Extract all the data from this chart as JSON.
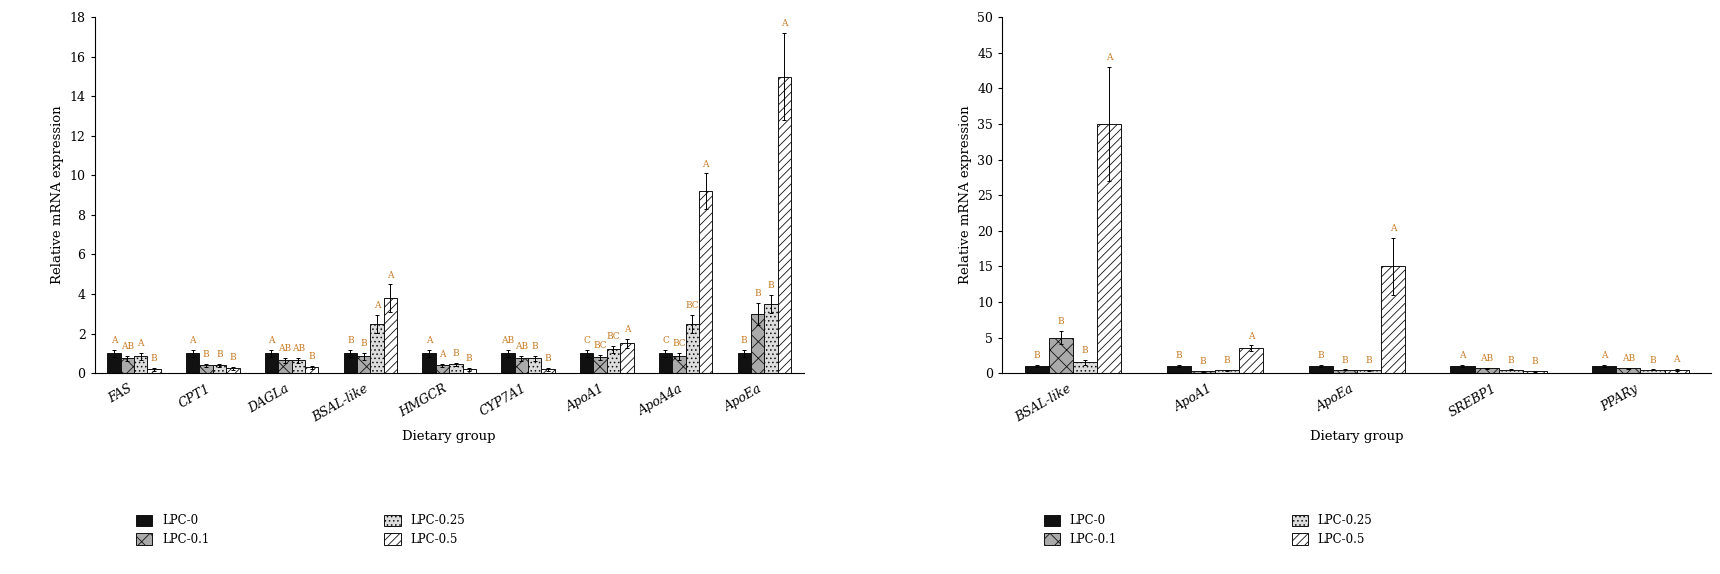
{
  "left": {
    "ylabel": "Relative mRNA expression",
    "xlabel": "Dietary group",
    "ylim": [
      0,
      18
    ],
    "yticks": [
      0,
      2,
      4,
      6,
      8,
      10,
      12,
      14,
      16,
      18
    ],
    "categories": [
      "FAS",
      "CPT1",
      "DAGLa",
      "BSAL-like",
      "HMGCR",
      "CYP7A1",
      "ApoA1",
      "ApoA4a",
      "ApoEa"
    ],
    "values": [
      [
        1.0,
        0.75,
        0.85,
        0.2
      ],
      [
        1.0,
        0.4,
        0.4,
        0.25
      ],
      [
        1.0,
        0.65,
        0.65,
        0.3
      ],
      [
        1.0,
        0.85,
        2.5,
        3.8
      ],
      [
        1.0,
        0.4,
        0.45,
        0.2
      ],
      [
        1.0,
        0.75,
        0.75,
        0.2
      ],
      [
        1.0,
        0.8,
        1.2,
        1.5
      ],
      [
        1.0,
        0.85,
        2.5,
        9.2
      ],
      [
        1.0,
        3.0,
        3.5,
        15.0
      ]
    ],
    "errors": [
      [
        0.18,
        0.12,
        0.18,
        0.08
      ],
      [
        0.18,
        0.08,
        0.08,
        0.08
      ],
      [
        0.18,
        0.12,
        0.12,
        0.08
      ],
      [
        0.18,
        0.18,
        0.45,
        0.7
      ],
      [
        0.18,
        0.08,
        0.08,
        0.08
      ],
      [
        0.18,
        0.12,
        0.12,
        0.08
      ],
      [
        0.18,
        0.12,
        0.18,
        0.25
      ],
      [
        0.18,
        0.18,
        0.45,
        0.9
      ],
      [
        0.18,
        0.55,
        0.45,
        2.2
      ]
    ],
    "letters": [
      [
        "A",
        "AB",
        "A",
        "B"
      ],
      [
        "A",
        "B",
        "B",
        "B"
      ],
      [
        "A",
        "AB",
        "AB",
        "B"
      ],
      [
        "B",
        "B",
        "A",
        "A"
      ],
      [
        "A",
        "A",
        "B",
        "B"
      ],
      [
        "AB",
        "AB",
        "B",
        "B"
      ],
      [
        "C",
        "BC",
        "BC",
        "A"
      ],
      [
        "C",
        "BC",
        "BC",
        "A"
      ],
      [
        "B",
        "B",
        "B",
        "A"
      ]
    ]
  },
  "right": {
    "ylabel": "Relative mRNA expression",
    "xlabel": "Dietary group",
    "ylim": [
      0,
      50
    ],
    "yticks": [
      0,
      5,
      10,
      15,
      20,
      25,
      30,
      35,
      40,
      45,
      50
    ],
    "categories": [
      "BSAL-like",
      "ApoA1",
      "ApoEa",
      "SREBP1",
      "PPARy"
    ],
    "values": [
      [
        1.0,
        5.0,
        1.5,
        35.0
      ],
      [
        1.0,
        0.25,
        0.4,
        3.5
      ],
      [
        1.0,
        0.45,
        0.4,
        15.0
      ],
      [
        1.0,
        0.65,
        0.45,
        0.25
      ],
      [
        1.0,
        0.65,
        0.45,
        0.45
      ]
    ],
    "errors": [
      [
        0.2,
        0.9,
        0.4,
        8.0
      ],
      [
        0.2,
        0.08,
        0.08,
        0.4
      ],
      [
        0.2,
        0.08,
        0.08,
        4.0
      ],
      [
        0.2,
        0.1,
        0.08,
        0.08
      ],
      [
        0.2,
        0.12,
        0.08,
        0.15
      ]
    ],
    "letters": [
      [
        "B",
        "B",
        "B",
        "A"
      ],
      [
        "B",
        "B",
        "B",
        "A"
      ],
      [
        "B",
        "B",
        "B",
        "A"
      ],
      [
        "A",
        "AB",
        "B",
        "B"
      ],
      [
        "A",
        "AB",
        "B",
        "A"
      ]
    ]
  },
  "legend_labels": [
    "LPC-0",
    "LPC-0.1",
    "LPC-0.25",
    "LPC-0.5"
  ],
  "letter_color": "#c87820",
  "letter_fontsize": 6.5,
  "bar_width": 0.17
}
